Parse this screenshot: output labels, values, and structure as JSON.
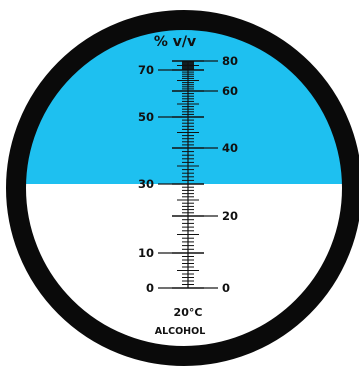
{
  "scale": {
    "unit_label": "% v/v",
    "temperature": "20°C",
    "fluid": "ALCOHOL",
    "reading": 30,
    "left_labels": [
      {
        "value": 70,
        "label": "70"
      },
      {
        "value": 50,
        "label": "50"
      },
      {
        "value": 30,
        "label": "30"
      },
      {
        "value": 10,
        "label": "10"
      },
      {
        "value": 0,
        "label": "0"
      }
    ],
    "right_labels": [
      {
        "value": 80,
        "label": "80"
      },
      {
        "value": 60,
        "label": "60"
      },
      {
        "value": 40,
        "label": "40"
      },
      {
        "value": 20,
        "label": "20"
      },
      {
        "value": 0,
        "label": "0"
      }
    ]
  },
  "colors": {
    "field_blue": "#1ec0f0",
    "field_white": "#ffffff",
    "rim": "#0a0a0a",
    "ink": "#111111"
  }
}
